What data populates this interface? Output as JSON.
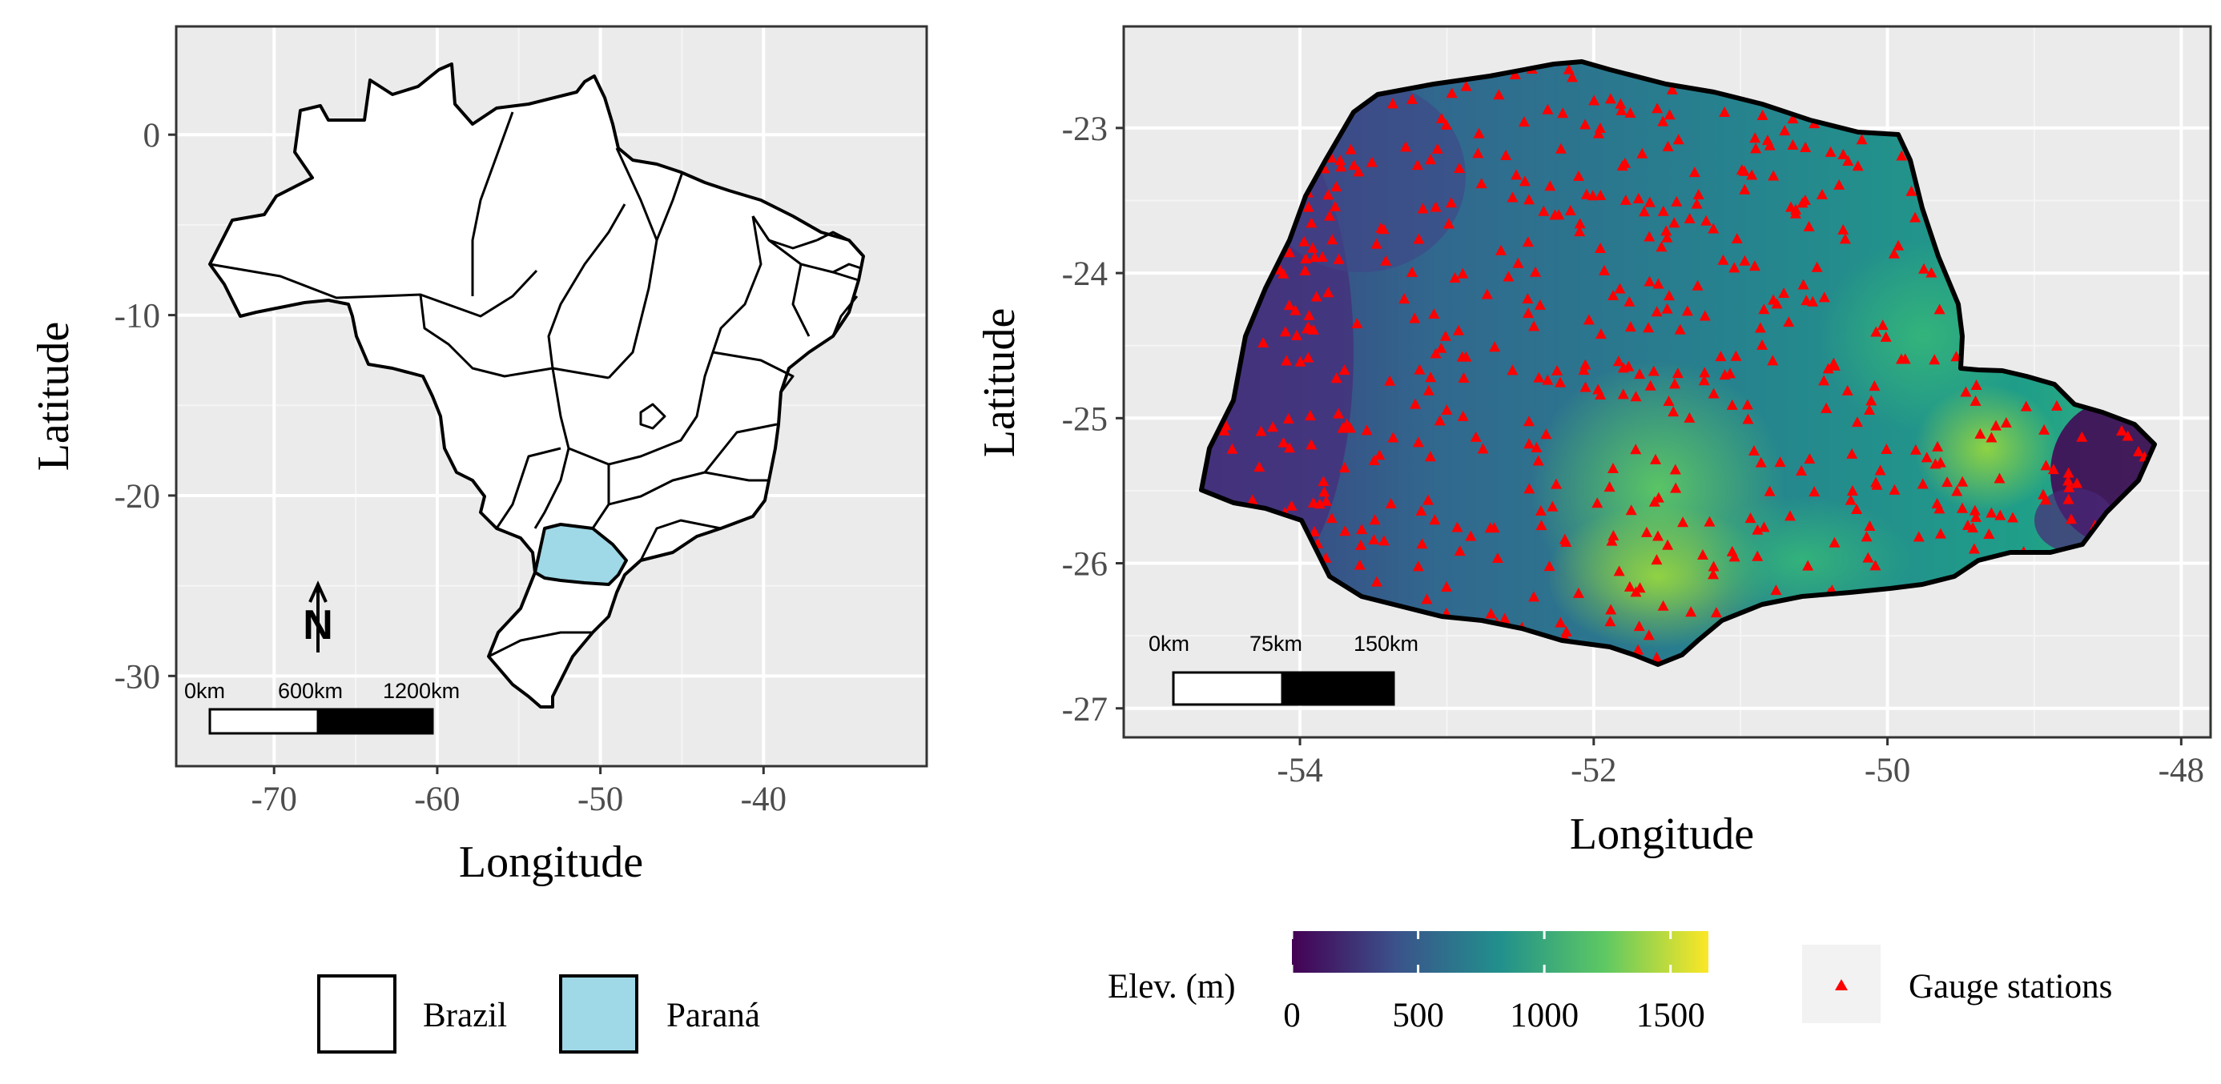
{
  "chart_data": [
    {
      "type": "map",
      "title": "",
      "xlabel": "Longitude",
      "ylabel": "Latitude",
      "xlim": [
        -76,
        -30
      ],
      "ylim": [
        -35,
        6
      ],
      "x_ticks": [
        -70,
        -60,
        -50,
        -40
      ],
      "y_ticks": [
        0,
        -10,
        -20,
        -30
      ],
      "x_tick_labels": [
        "-70",
        "-60",
        "-50",
        "-40"
      ],
      "y_tick_labels": [
        "0",
        "-10",
        "-20",
        "-30"
      ],
      "grid": true,
      "scale_bar": {
        "labels": [
          "0km",
          "600km",
          "1200km"
        ]
      },
      "north_arrow": {
        "label": "N"
      },
      "layers": [
        {
          "name": "Brazil",
          "fill": "#ffffff"
        },
        {
          "name": "Paraná",
          "fill": "#9fd8e6"
        }
      ]
    },
    {
      "type": "map",
      "title": "",
      "xlabel": "Longitude",
      "ylabel": "Latitude",
      "xlim": [
        -55.2,
        -47.8
      ],
      "ylim": [
        -27.2,
        -22.3
      ],
      "x_ticks": [
        -54,
        -52,
        -50,
        -48
      ],
      "y_ticks": [
        -23,
        -24,
        -25,
        -26,
        -27
      ],
      "x_tick_labels": [
        "-54",
        "-52",
        "-50",
        "-48"
      ],
      "y_tick_labels": [
        "-23",
        "-24",
        "-25",
        "-26",
        "-27"
      ],
      "grid": true,
      "scale_bar": {
        "labels": [
          "0km",
          "75km",
          "150km"
        ]
      },
      "colorbar": {
        "title": "Elev. (m)",
        "range": [
          0,
          1650
        ],
        "ticks": [
          0,
          500,
          1000,
          1500
        ],
        "tick_labels": [
          "0",
          "500",
          "1000",
          "1500"
        ],
        "palette": "viridis"
      },
      "points": {
        "name": "Gauge stations",
        "marker": "triangle",
        "color": "#ff0000",
        "count_shown": 480
      }
    }
  ],
  "legends": {
    "regions": {
      "items": [
        "Brazil",
        "Paraná"
      ]
    },
    "elevation": {
      "title": "Elev. (m)"
    },
    "stations": {
      "label": "Gauge stations"
    }
  },
  "colors": {
    "panel_bg": "#ebebeb",
    "brazil_fill": "#ffffff",
    "parana_fill": "#9fd8e6",
    "station_color": "#ff0000",
    "viridis": [
      "#440154",
      "#3b528b",
      "#21908c",
      "#5dc863",
      "#fde725"
    ]
  }
}
